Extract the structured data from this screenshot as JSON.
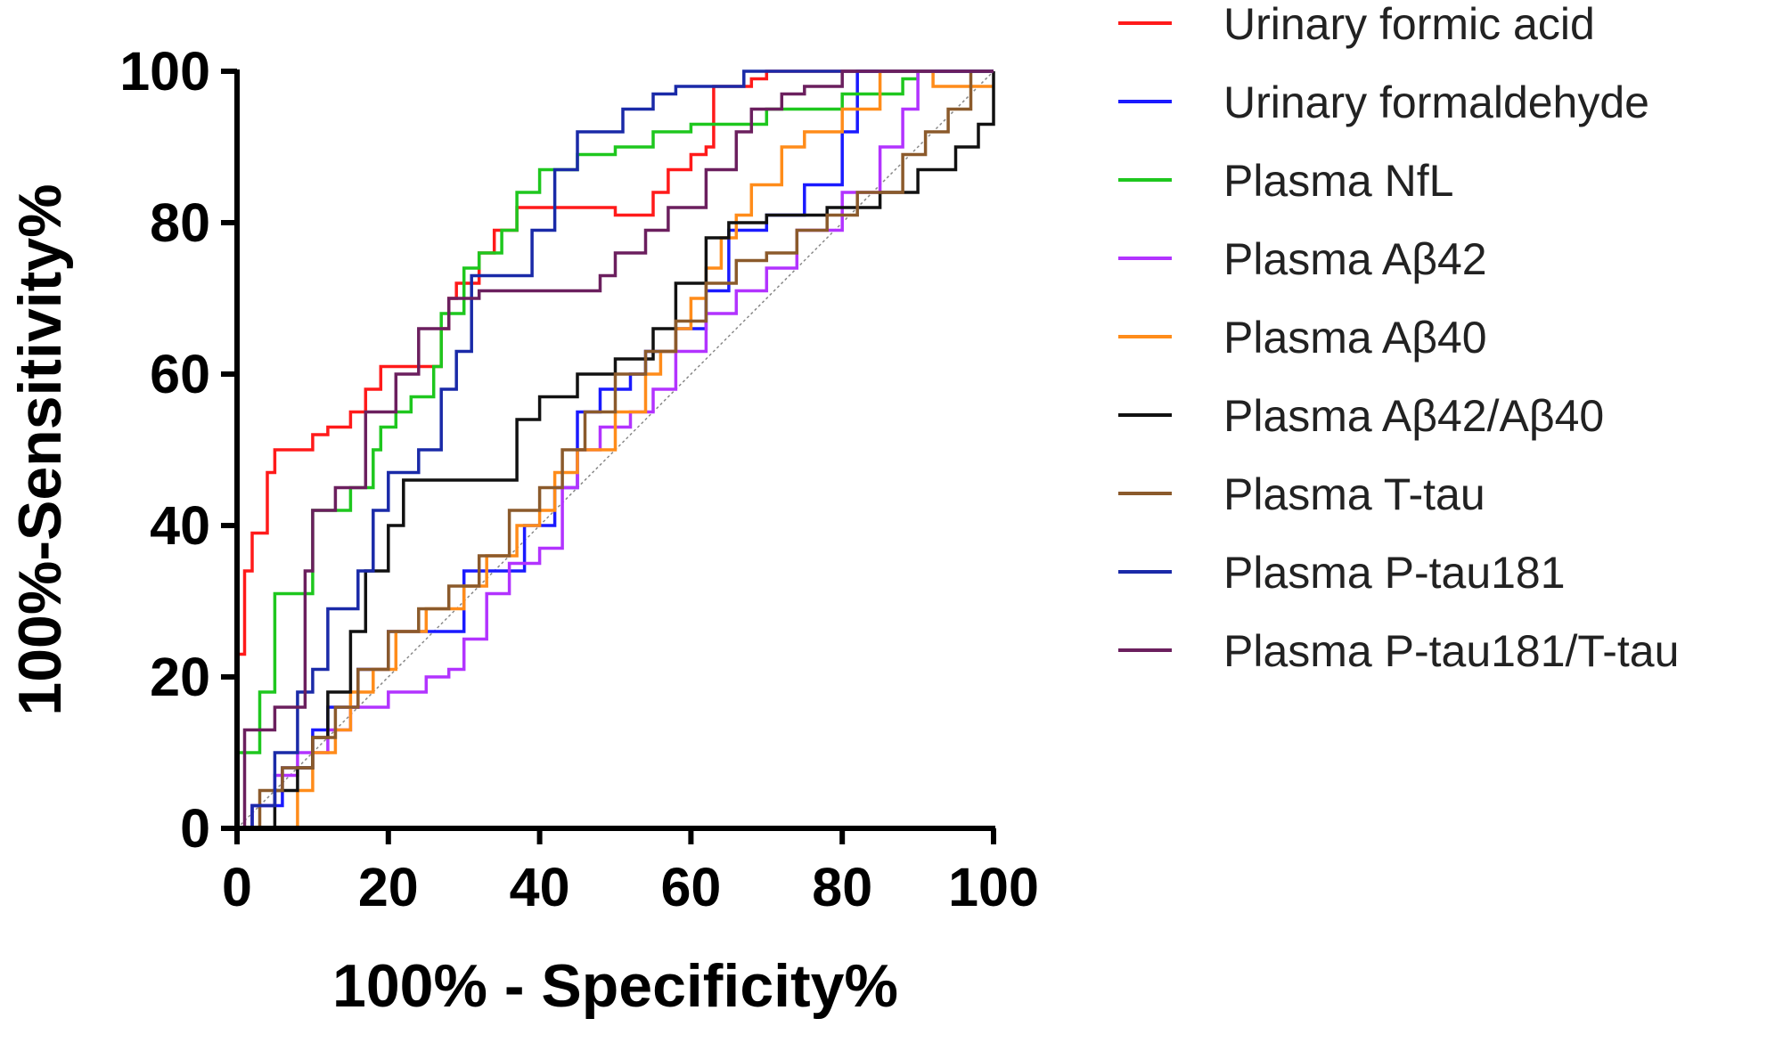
{
  "chart_data": {
    "type": "line",
    "title": "",
    "xlabel": "100% - Specificity%",
    "ylabel": "100%-Sensitivity%",
    "xlim": [
      0,
      100
    ],
    "ylim": [
      0,
      100
    ],
    "xticks": [
      "0",
      "20",
      "40",
      "60",
      "80",
      "100"
    ],
    "yticks": [
      "0",
      "20",
      "40",
      "60",
      "80",
      "100"
    ],
    "x_tick_values": [
      0,
      20,
      40,
      60,
      80,
      100
    ],
    "y_tick_values": [
      0,
      20,
      40,
      60,
      80,
      100
    ],
    "grid": false,
    "legend_position": "right",
    "reference_line": {
      "x": [
        0,
        100
      ],
      "y": [
        0,
        100
      ],
      "color": "#888888",
      "style": "dotted"
    },
    "series": [
      {
        "name": "Urinary formic acid",
        "color": "#ff1a1a",
        "x": [
          0,
          0,
          1,
          1,
          2,
          2,
          4,
          4,
          5,
          5,
          10,
          10,
          12,
          12,
          15,
          15,
          17,
          17,
          19,
          19,
          27,
          27,
          28,
          28,
          29,
          29,
          32,
          32,
          34,
          34,
          37,
          37,
          50,
          50,
          55,
          55,
          57,
          57,
          60,
          60,
          62,
          62,
          63,
          63,
          68,
          68,
          70,
          70,
          100
        ],
        "y": [
          0,
          23,
          23,
          34,
          34,
          39,
          39,
          47,
          47,
          50,
          50,
          52,
          52,
          53,
          53,
          55,
          55,
          58,
          58,
          61,
          61,
          66,
          66,
          70,
          70,
          72,
          72,
          76,
          76,
          79,
          79,
          82,
          82,
          81,
          81,
          84,
          84,
          87,
          87,
          89,
          89,
          90,
          90,
          98,
          98,
          99,
          99,
          100,
          100
        ]
      },
      {
        "name": "Urinary formaldehyde",
        "color": "#1a1aff",
        "x": [
          0,
          2,
          2,
          6,
          6,
          10,
          10,
          12,
          12,
          16,
          16,
          20,
          20,
          30,
          30,
          38,
          38,
          42,
          42,
          45,
          45,
          48,
          48,
          52,
          52,
          54,
          54,
          58,
          58,
          62,
          62,
          65,
          65,
          70,
          70,
          75,
          75,
          80,
          80,
          82,
          82,
          100
        ],
        "y": [
          0,
          0,
          3,
          3,
          8,
          8,
          13,
          13,
          16,
          16,
          21,
          21,
          26,
          26,
          34,
          34,
          40,
          40,
          45,
          45,
          55,
          55,
          58,
          58,
          60,
          60,
          63,
          63,
          66,
          66,
          71,
          71,
          79,
          79,
          81,
          81,
          85,
          85,
          92,
          92,
          100,
          100
        ]
      },
      {
        "name": "Plasma NfL",
        "color": "#1ec71e",
        "x": [
          0,
          0,
          3,
          3,
          5,
          5,
          10,
          10,
          15,
          15,
          18,
          18,
          19,
          19,
          21,
          21,
          23,
          23,
          26,
          26,
          27,
          27,
          30,
          30,
          32,
          32,
          35,
          35,
          37,
          37,
          40,
          40,
          45,
          45,
          50,
          50,
          55,
          55,
          60,
          60,
          70,
          70,
          80,
          80,
          88,
          88,
          90,
          90,
          100
        ],
        "y": [
          0,
          10,
          10,
          18,
          18,
          31,
          31,
          42,
          42,
          45,
          45,
          50,
          50,
          53,
          53,
          55,
          55,
          57,
          57,
          61,
          61,
          68,
          68,
          74,
          74,
          76,
          76,
          79,
          79,
          84,
          84,
          87,
          87,
          89,
          89,
          90,
          90,
          92,
          92,
          93,
          93,
          95,
          95,
          97,
          97,
          99,
          99,
          100,
          100
        ]
      },
      {
        "name": "Plasma Aβ42",
        "color": "#b233ff",
        "x": [
          0,
          2,
          2,
          5,
          5,
          8,
          8,
          12,
          12,
          15,
          15,
          20,
          20,
          25,
          25,
          28,
          28,
          30,
          30,
          33,
          33,
          36,
          36,
          40,
          40,
          43,
          43,
          45,
          45,
          48,
          48,
          52,
          52,
          55,
          55,
          58,
          58,
          62,
          62,
          66,
          66,
          70,
          70,
          74,
          74,
          80,
          80,
          85,
          85,
          88,
          88,
          90,
          90,
          100
        ],
        "y": [
          0,
          0,
          3,
          3,
          7,
          7,
          10,
          10,
          13,
          13,
          16,
          16,
          18,
          18,
          20,
          20,
          21,
          21,
          25,
          25,
          31,
          31,
          35,
          35,
          37,
          37,
          45,
          45,
          50,
          50,
          53,
          53,
          55,
          55,
          58,
          58,
          63,
          63,
          68,
          68,
          71,
          71,
          74,
          74,
          79,
          79,
          84,
          84,
          90,
          90,
          95,
          95,
          100,
          100
        ]
      },
      {
        "name": "Plasma Aβ40",
        "color": "#ff8c1a",
        "x": [
          0,
          8,
          8,
          10,
          10,
          13,
          13,
          15,
          15,
          18,
          18,
          21,
          21,
          25,
          25,
          30,
          30,
          33,
          33,
          37,
          37,
          40,
          40,
          42,
          42,
          45,
          45,
          50,
          50,
          54,
          54,
          56,
          56,
          58,
          58,
          60,
          60,
          62,
          62,
          64,
          64,
          66,
          66,
          68,
          68,
          72,
          72,
          75,
          75,
          80,
          80,
          85,
          85,
          92,
          92,
          100
        ],
        "y": [
          0,
          0,
          5,
          5,
          10,
          10,
          13,
          13,
          18,
          18,
          21,
          21,
          26,
          26,
          29,
          29,
          32,
          32,
          36,
          36,
          40,
          40,
          42,
          42,
          47,
          47,
          50,
          50,
          55,
          55,
          60,
          60,
          63,
          63,
          66,
          66,
          70,
          70,
          74,
          74,
          78,
          78,
          81,
          81,
          85,
          85,
          90,
          90,
          92,
          92,
          95,
          95,
          100,
          100,
          98,
          98
        ]
      },
      {
        "name": "Plasma Aβ42/Aβ40",
        "color": "#111111",
        "x": [
          0,
          5,
          5,
          8,
          8,
          10,
          10,
          12,
          12,
          15,
          15,
          17,
          17,
          20,
          20,
          22,
          22,
          37,
          37,
          40,
          40,
          45,
          45,
          50,
          50,
          55,
          55,
          58,
          58,
          62,
          62,
          65,
          65,
          70,
          70,
          78,
          78,
          85,
          85,
          90,
          90,
          95,
          95,
          98,
          98,
          100,
          100
        ],
        "y": [
          0,
          0,
          5,
          5,
          8,
          8,
          12,
          12,
          18,
          18,
          26,
          26,
          34,
          34,
          40,
          40,
          46,
          46,
          54,
          54,
          57,
          57,
          60,
          60,
          62,
          62,
          66,
          66,
          72,
          72,
          78,
          78,
          80,
          80,
          81,
          81,
          82,
          82,
          84,
          84,
          87,
          87,
          90,
          90,
          93,
          93,
          100
        ]
      },
      {
        "name": "Plasma T-tau",
        "color": "#8b5a2b",
        "x": [
          0,
          3,
          3,
          6,
          6,
          10,
          10,
          13,
          13,
          16,
          16,
          20,
          20,
          24,
          24,
          28,
          28,
          32,
          32,
          36,
          36,
          40,
          40,
          43,
          43,
          46,
          46,
          50,
          50,
          54,
          54,
          58,
          58,
          62,
          62,
          66,
          66,
          70,
          70,
          74,
          74,
          78,
          78,
          82,
          82,
          88,
          88,
          91,
          91,
          94,
          94,
          97,
          97,
          100
        ],
        "y": [
          0,
          0,
          5,
          5,
          8,
          8,
          12,
          12,
          16,
          16,
          21,
          21,
          26,
          26,
          29,
          29,
          32,
          32,
          36,
          36,
          42,
          42,
          45,
          45,
          50,
          50,
          55,
          55,
          60,
          60,
          63,
          63,
          67,
          67,
          72,
          72,
          75,
          75,
          76,
          76,
          79,
          79,
          81,
          81,
          84,
          84,
          89,
          89,
          92,
          92,
          95,
          95,
          100,
          100
        ]
      },
      {
        "name": "Plasma P-tau181",
        "color": "#1a2aa8",
        "x": [
          0,
          2,
          2,
          5,
          5,
          8,
          8,
          10,
          10,
          12,
          12,
          16,
          16,
          18,
          18,
          20,
          20,
          24,
          24,
          27,
          27,
          29,
          29,
          31,
          31,
          39,
          39,
          42,
          42,
          45,
          45,
          51,
          51,
          55,
          55,
          58,
          58,
          67,
          67,
          100
        ],
        "y": [
          0,
          0,
          3,
          3,
          10,
          10,
          18,
          18,
          21,
          21,
          29,
          29,
          34,
          34,
          42,
          42,
          47,
          47,
          50,
          50,
          58,
          58,
          63,
          63,
          73,
          73,
          79,
          79,
          87,
          87,
          92,
          92,
          95,
          95,
          97,
          97,
          98,
          98,
          100,
          100
        ]
      },
      {
        "name": "Plasma P-tau181/T-tau",
        "color": "#6b1f5e",
        "x": [
          0,
          1,
          1,
          5,
          5,
          9,
          9,
          10,
          10,
          13,
          13,
          17,
          17,
          21,
          21,
          24,
          24,
          28,
          28,
          32,
          32,
          35,
          35,
          48,
          48,
          50,
          50,
          54,
          54,
          57,
          57,
          62,
          62,
          66,
          66,
          68,
          68,
          72,
          72,
          75,
          75,
          80,
          80,
          82,
          82,
          100
        ],
        "y": [
          0,
          0,
          13,
          13,
          16,
          16,
          34,
          34,
          42,
          42,
          45,
          45,
          55,
          55,
          60,
          60,
          66,
          66,
          70,
          70,
          71,
          71,
          71,
          71,
          73,
          73,
          76,
          76,
          79,
          79,
          82,
          82,
          87,
          87,
          92,
          92,
          95,
          95,
          97,
          97,
          98,
          98,
          100,
          100,
          100,
          100
        ]
      }
    ]
  }
}
